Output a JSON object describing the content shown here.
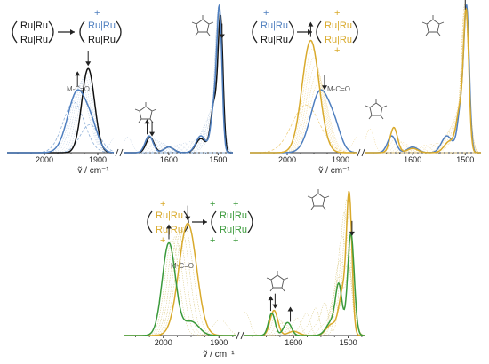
{
  "figure": {
    "ru_label": "Ru|Ru",
    "plus_sign": "+",
    "mco_label": "M-C=O",
    "x_axis_label": "ṽ / cm⁻¹"
  },
  "colors": {
    "black": "#111111",
    "blue": "#4f7fbf",
    "yellow": "#d9aa2c",
    "green": "#3b9a3b",
    "axis": "#333333",
    "dash_blue": "#8fb0d8",
    "dash_yellow": "#efcf7e",
    "dash_green": "#8cc88c",
    "inter_blue": "#9fb8d6",
    "inter_yellow": "#e7c66a",
    "inter_green": "#c9b24d"
  },
  "chart_data": [
    {
      "type": "line",
      "panel": "top-left",
      "xlabel": "ṽ / cm⁻¹",
      "segments": [
        {
          "xlim": [
            2070,
            1870
          ],
          "ticks": [
            2000,
            1900
          ],
          "tick_labels": [
            "2000",
            "1900"
          ]
        },
        {
          "xlim": [
            1690,
            1470
          ],
          "ticks": [
            1600,
            1500
          ],
          "tick_labels": [
            "1600",
            "1500"
          ]
        }
      ],
      "ylim": [
        0,
        1
      ],
      "series": [
        {
          "color": "black",
          "values": [
            [
              1918,
              0.6,
              12
            ],
            [
              1638,
              0.11,
              8
            ],
            [
              1600,
              0.04,
              10
            ],
            [
              1535,
              0.1,
              10
            ],
            [
              1508,
              0.35,
              7
            ],
            [
              1495,
              0.92,
              5
            ]
          ]
        },
        {
          "color": "blue",
          "values": [
            [
              1938,
              0.44,
              18
            ],
            [
              1910,
              0.12,
              12
            ],
            [
              1640,
              0.12,
              8
            ],
            [
              1600,
              0.04,
              10
            ],
            [
              1535,
              0.12,
              10
            ],
            [
              1507,
              0.35,
              7
            ],
            [
              1497,
              0.92,
              5
            ]
          ]
        }
      ],
      "dashed": [
        {
          "color": "dash_blue",
          "values": [
            [
              1945,
              0.36,
              20
            ],
            [
              1915,
              0.2,
              18
            ]
          ]
        }
      ],
      "arrows": [
        {
          "x": 1938,
          "direction": "up"
        },
        {
          "x": 1918,
          "direction": "down"
        },
        {
          "x": 1644,
          "direction": "up"
        },
        {
          "x": 1634,
          "direction": "down"
        },
        {
          "x": 1492,
          "direction": "down"
        }
      ],
      "legend_ox": [
        "black",
        "blue"
      ]
    },
    {
      "type": "line",
      "panel": "top-right",
      "xlabel": "ṽ / cm⁻¹",
      "segments": [
        {
          "xlim": [
            2070,
            1870
          ],
          "ticks": [
            2000,
            1900
          ],
          "tick_labels": [
            "2000",
            "1900"
          ]
        },
        {
          "xlim": [
            1690,
            1470
          ],
          "ticks": [
            1600,
            1500
          ],
          "tick_labels": [
            "1600",
            "1500"
          ]
        }
      ],
      "ylim": [
        0,
        1
      ],
      "series": [
        {
          "color": "blue",
          "values": [
            [
              1938,
              0.44,
              18
            ],
            [
              1910,
              0.12,
              12
            ],
            [
              1640,
              0.12,
              8
            ],
            [
              1600,
              0.04,
              10
            ],
            [
              1535,
              0.12,
              10
            ],
            [
              1507,
              0.35,
              7
            ],
            [
              1497,
              0.92,
              5
            ]
          ]
        },
        {
          "color": "yellow",
          "values": [
            [
              1956,
              0.8,
              16
            ],
            [
              1636,
              0.18,
              7
            ],
            [
              1600,
              0.03,
              10
            ],
            [
              1530,
              0.08,
              10
            ],
            [
              1510,
              0.3,
              7
            ],
            [
              1498,
              0.96,
              5
            ]
          ]
        }
      ],
      "dashed": [
        {
          "color": "dash_yellow",
          "values": [
            [
              1965,
              0.34,
              26
            ]
          ]
        }
      ],
      "arrows": [
        {
          "x": 1956,
          "direction": "up"
        },
        {
          "x": 1930,
          "direction": "down"
        },
        {
          "x": 1500,
          "direction": "up"
        }
      ],
      "legend_ox": [
        "blue",
        "yellow"
      ]
    },
    {
      "type": "line",
      "panel": "bottom",
      "xlabel": "ṽ / cm⁻¹",
      "segments": [
        {
          "xlim": [
            2070,
            1870
          ],
          "ticks": [
            2000,
            1900
          ],
          "tick_labels": [
            "2000",
            "1900"
          ]
        },
        {
          "xlim": [
            1690,
            1470
          ],
          "ticks": [
            1600,
            1500
          ],
          "tick_labels": [
            "1600",
            "1500"
          ]
        }
      ],
      "ylim": [
        0,
        1
      ],
      "series": [
        {
          "color": "yellow",
          "values": [
            [
              1956,
              0.8,
              16
            ],
            [
              1636,
              0.18,
              7
            ],
            [
              1600,
              0.03,
              10
            ],
            [
              1530,
              0.08,
              10
            ],
            [
              1510,
              0.3,
              7
            ],
            [
              1498,
              0.96,
              5
            ]
          ]
        },
        {
          "color": "green",
          "values": [
            [
              1990,
              0.66,
              12
            ],
            [
              1950,
              0.1,
              14
            ],
            [
              1640,
              0.16,
              6
            ],
            [
              1615,
              0.05,
              6
            ],
            [
              1608,
              0.06,
              6
            ],
            [
              1530,
              0.1,
              10
            ],
            [
              1517,
              0.33,
              6
            ],
            [
              1495,
              0.73,
              6
            ]
          ]
        }
      ],
      "dashed": [],
      "arrows": [
        {
          "x": 1990,
          "direction": "up"
        },
        {
          "x": 1956,
          "direction": "down"
        },
        {
          "x": 1642,
          "direction": "up"
        },
        {
          "x": 1634,
          "direction": "down"
        },
        {
          "x": 1606,
          "direction": "up"
        },
        {
          "x": 1493,
          "direction": "down"
        }
      ],
      "legend_ox": [
        "yellow",
        "green"
      ]
    }
  ]
}
